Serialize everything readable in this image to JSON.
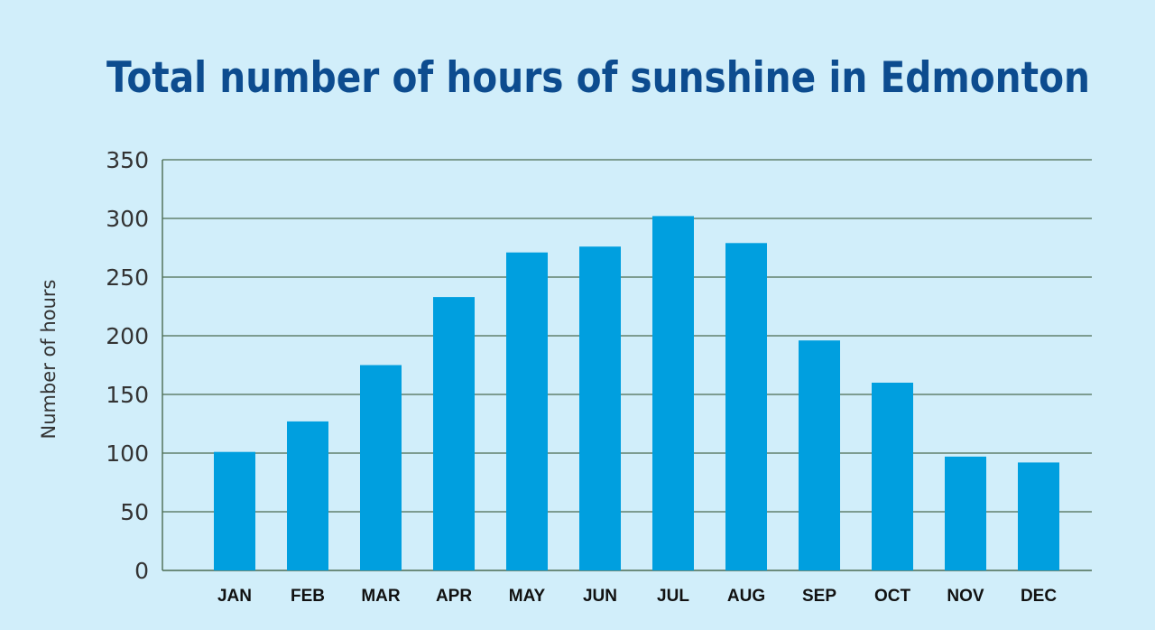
{
  "chart_data": {
    "type": "bar",
    "title": "Total number of hours of sunshine in Edmonton",
    "xlabel": "",
    "ylabel": "Number of hours",
    "categories": [
      "JAN",
      "FEB",
      "MAR",
      "APR",
      "MAY",
      "JUN",
      "JUL",
      "AUG",
      "SEP",
      "OCT",
      "NOV",
      "DEC"
    ],
    "values": [
      101,
      127,
      175,
      233,
      271,
      276,
      302,
      279,
      196,
      160,
      97,
      92
    ],
    "ylim": [
      0,
      350
    ],
    "yticks": [
      0,
      50,
      100,
      150,
      200,
      250,
      300,
      350
    ],
    "grid": true,
    "colors": {
      "bar": "#009fdf",
      "grid": "#4b6b52",
      "background": "#d1eefa",
      "title": "#0d4c8f"
    }
  }
}
